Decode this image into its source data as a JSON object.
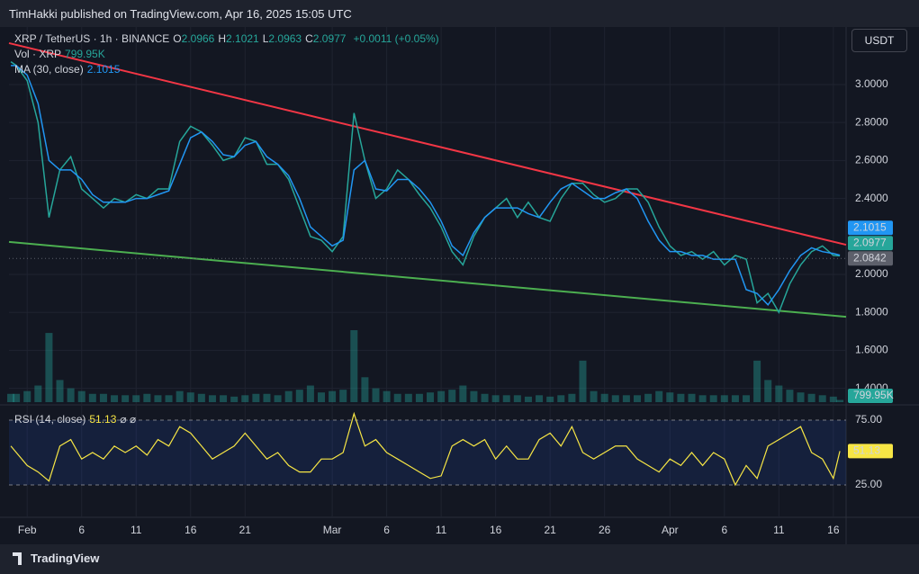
{
  "header": {
    "text": "TimHakki published on TradingView.com, Apr 16, 2025 15:05 UTC"
  },
  "chart_data": {
    "type": "line",
    "currency": "USDT",
    "ohlc": [
      {
        "label": "O",
        "value": 2.0966
      },
      {
        "label": "H",
        "value": 2.1021
      },
      {
        "label": "L",
        "value": 2.0963
      },
      {
        "label": "C",
        "value": 2.0977
      }
    ],
    "change": "+0.0011 (+0.05%)",
    "x": [
      -1.5,
      -1,
      0,
      1,
      2,
      3,
      4,
      5,
      6,
      7,
      8,
      9,
      10,
      11,
      12,
      13,
      14,
      15,
      16,
      17,
      18,
      19,
      20,
      21,
      22,
      23,
      24,
      25,
      26,
      27,
      28,
      29,
      30,
      31,
      32,
      33,
      34,
      35,
      36,
      37,
      38,
      39,
      40,
      41,
      42,
      43,
      44,
      45,
      46,
      47,
      48,
      49,
      50,
      51,
      52,
      53,
      54,
      55,
      56,
      57,
      58,
      59,
      60,
      61,
      62,
      63,
      64,
      65,
      66,
      67,
      68,
      69,
      70,
      71,
      72,
      73,
      74,
      74.6
    ],
    "xlim": [
      -1.67,
      75.17
    ],
    "xticks": [
      {
        "value": 0,
        "label": "Feb"
      },
      {
        "value": 5,
        "label": "6"
      },
      {
        "value": 10,
        "label": "11"
      },
      {
        "value": 15,
        "label": "16"
      },
      {
        "value": 20,
        "label": "21"
      },
      {
        "value": 28,
        "label": "Mar"
      },
      {
        "value": 33,
        "label": "6"
      },
      {
        "value": 38,
        "label": "11"
      },
      {
        "value": 43,
        "label": "16"
      },
      {
        "value": 48,
        "label": "21"
      },
      {
        "value": 53,
        "label": "26"
      },
      {
        "value": 59,
        "label": "Apr"
      },
      {
        "value": 64,
        "label": "6"
      },
      {
        "value": 69,
        "label": "11"
      },
      {
        "value": 74,
        "label": "16"
      }
    ],
    "ylim": [
      1.313,
      3.303
    ],
    "yticks": [
      {
        "value": 1.4,
        "label": "1.4000"
      },
      {
        "value": 1.6,
        "label": "1.6000"
      },
      {
        "value": 1.8,
        "label": "1.8000"
      },
      {
        "value": 2.0,
        "label": "2.0000"
      },
      {
        "value": 2.4,
        "label": "2.4000"
      },
      {
        "value": 2.6,
        "label": "2.6000"
      },
      {
        "value": 2.8,
        "label": "2.8000"
      },
      {
        "value": 3.0,
        "label": "3.0000"
      }
    ],
    "series": [
      {
        "name": "XRP / TetherUS · 1h · BINANCE",
        "color": "#26a69a",
        "values": [
          3.12,
          3.1,
          3.02,
          2.8,
          2.3,
          2.55,
          2.62,
          2.45,
          2.4,
          2.35,
          2.4,
          2.38,
          2.42,
          2.4,
          2.45,
          2.45,
          2.7,
          2.78,
          2.75,
          2.68,
          2.6,
          2.62,
          2.72,
          2.7,
          2.58,
          2.58,
          2.5,
          2.35,
          2.2,
          2.18,
          2.12,
          2.2,
          2.85,
          2.6,
          2.4,
          2.45,
          2.55,
          2.5,
          2.42,
          2.35,
          2.25,
          2.12,
          2.05,
          2.2,
          2.3,
          2.35,
          2.4,
          2.3,
          2.38,
          2.3,
          2.28,
          2.4,
          2.48,
          2.48,
          2.42,
          2.38,
          2.4,
          2.45,
          2.45,
          2.38,
          2.25,
          2.15,
          2.1,
          2.12,
          2.08,
          2.12,
          2.05,
          2.1,
          2.08,
          1.85,
          1.9,
          1.8,
          1.95,
          2.05,
          2.12,
          2.15,
          2.1,
          2.0977
        ]
      },
      {
        "name": "MA (30, close)",
        "color": "#2196f3",
        "last_value": 2.1015,
        "values": [
          3.1,
          3.1,
          3.05,
          2.9,
          2.6,
          2.55,
          2.55,
          2.5,
          2.42,
          2.38,
          2.38,
          2.38,
          2.4,
          2.4,
          2.42,
          2.44,
          2.58,
          2.72,
          2.75,
          2.7,
          2.63,
          2.62,
          2.68,
          2.7,
          2.62,
          2.58,
          2.52,
          2.4,
          2.25,
          2.2,
          2.15,
          2.18,
          2.55,
          2.6,
          2.45,
          2.44,
          2.5,
          2.5,
          2.45,
          2.38,
          2.28,
          2.15,
          2.1,
          2.22,
          2.3,
          2.35,
          2.35,
          2.35,
          2.32,
          2.3,
          2.38,
          2.45,
          2.48,
          2.44,
          2.4,
          2.4,
          2.43,
          2.45,
          2.4,
          2.28,
          2.18,
          2.12,
          2.12,
          2.1,
          2.1,
          2.08,
          2.08,
          2.08,
          1.92,
          1.9,
          1.84,
          1.92,
          2.02,
          2.1,
          2.14,
          2.12,
          2.11,
          2.1015
        ]
      }
    ],
    "price_line": {
      "value": 2.0842,
      "color": "#5d606b"
    },
    "trendlines": [
      {
        "color": "#f23645",
        "x": [
          -1.67,
          75.17
        ],
        "y": [
          3.218,
          2.156
        ]
      },
      {
        "color": "#4caf50",
        "x": [
          -1.67,
          75.17
        ],
        "y": [
          2.171,
          1.777
        ]
      }
    ],
    "volume": {
      "name": "Vol · XRP",
      "last": {
        "value": 799.95,
        "label": "799.95K"
      },
      "color": "#26a69a",
      "values": [
        30,
        30,
        40,
        60,
        250,
        80,
        50,
        40,
        30,
        30,
        25,
        25,
        25,
        30,
        25,
        25,
        40,
        35,
        30,
        25,
        25,
        20,
        25,
        30,
        30,
        25,
        40,
        45,
        60,
        35,
        40,
        45,
        260,
        90,
        50,
        40,
        30,
        30,
        30,
        35,
        40,
        45,
        60,
        40,
        30,
        25,
        25,
        25,
        20,
        25,
        20,
        25,
        30,
        150,
        40,
        30,
        25,
        25,
        25,
        30,
        40,
        35,
        30,
        30,
        25,
        25,
        25,
        25,
        25,
        150,
        80,
        60,
        45,
        35,
        30,
        25,
        20,
        8
      ]
    },
    "rsi": {
      "name": "RSI (14, close)",
      "symbols": "⌀ ⌀",
      "last": 51.13,
      "color": "#f7e645",
      "ylim": [
        0,
        85.4
      ],
      "yticks": [
        {
          "value": 25,
          "label": "25.00"
        },
        {
          "value": 75,
          "label": "75.00"
        }
      ],
      "values": [
        55,
        50,
        40,
        35,
        28,
        55,
        60,
        45,
        50,
        45,
        55,
        50,
        55,
        48,
        60,
        55,
        70,
        65,
        55,
        45,
        50,
        55,
        65,
        55,
        45,
        50,
        40,
        35,
        35,
        45,
        45,
        50,
        80,
        55,
        60,
        50,
        45,
        40,
        35,
        30,
        32,
        55,
        60,
        55,
        60,
        45,
        55,
        45,
        45,
        60,
        65,
        55,
        70,
        50,
        45,
        50,
        55,
        55,
        45,
        40,
        35,
        45,
        40,
        50,
        40,
        50,
        45,
        25,
        40,
        30,
        55,
        60,
        65,
        70,
        50,
        45,
        30,
        51.13
      ]
    }
  },
  "footer": {
    "brand": "TradingView"
  }
}
